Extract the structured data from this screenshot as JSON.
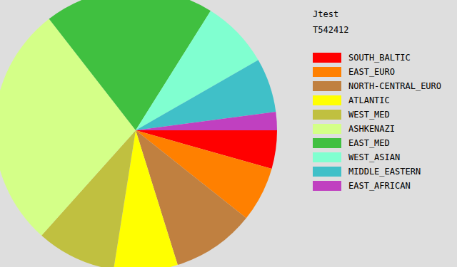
{
  "chart_data": {
    "type": "pie",
    "title": "Jtest",
    "subtitle": "T542412",
    "categories": [
      "SOUTH_BALTIC",
      "EAST_EURO",
      "NORTH-CENTRAL_EURO",
      "ATLANTIC",
      "WEST_MED",
      "ASHKENAZI",
      "EAST_MED",
      "WEST_ASIAN",
      "MIDDLE_EASTERN",
      "EAST_AFRICAN"
    ],
    "values": [
      4.4,
      6.3,
      9.5,
      7.3,
      9.1,
      27.9,
      19.4,
      7.8,
      6.2,
      2.1
    ],
    "colors": [
      "#ff0000",
      "#ff8000",
      "#c08040",
      "#ffff00",
      "#c0c040",
      "#d4ff88",
      "#40c040",
      "#80ffd0",
      "#40c0c8",
      "#c040c0"
    ],
    "legend": "right"
  }
}
